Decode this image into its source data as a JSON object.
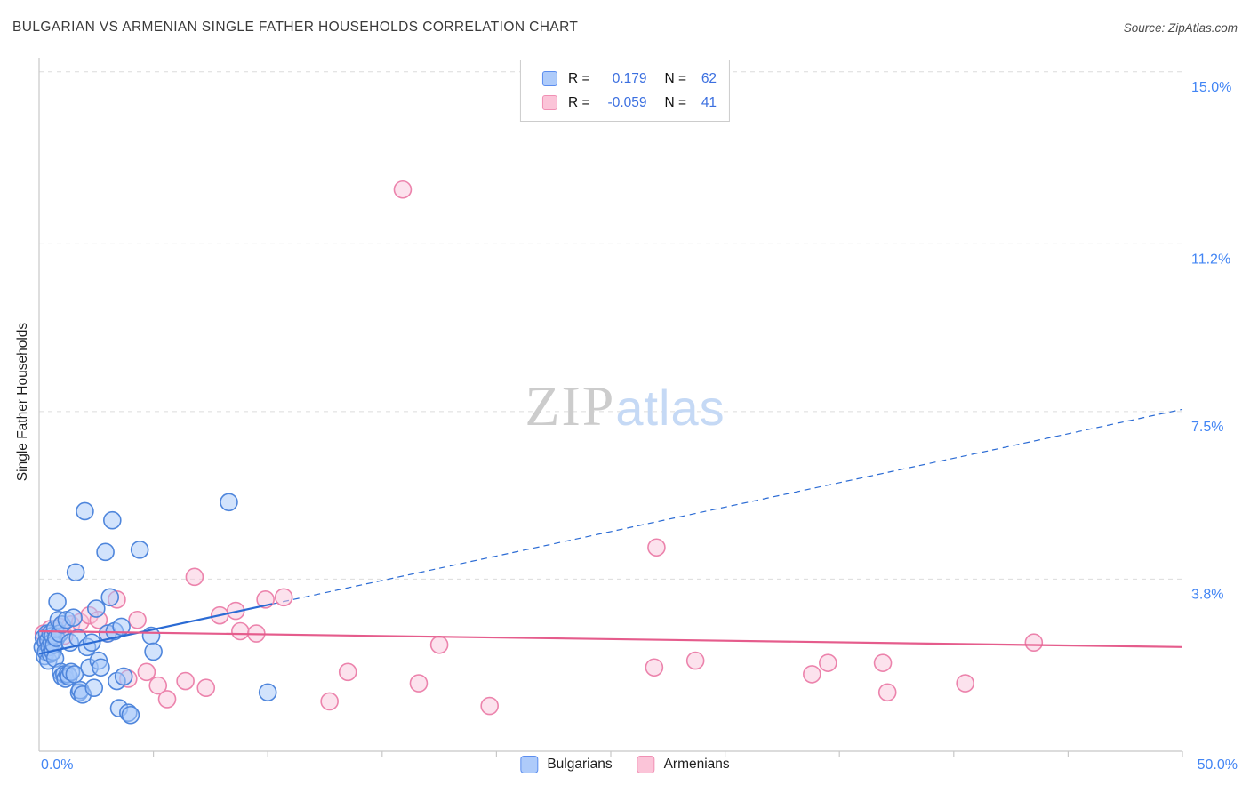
{
  "header": {
    "title": "BULGARIAN VS ARMENIAN SINGLE FATHER HOUSEHOLDS CORRELATION CHART",
    "source": "Source: ZipAtlas.com"
  },
  "watermark": {
    "zip": "ZIP",
    "atlas": "atlas"
  },
  "legend": {
    "rows": [
      {
        "series": "Bulgarians",
        "r_label": "R =",
        "r_value": "0.179",
        "n_label": "N =",
        "n_value": "62"
      },
      {
        "series": "Armenians",
        "r_label": "R =",
        "r_value": "-0.059",
        "n_label": "N =",
        "n_value": "41"
      }
    ]
  },
  "bottom_legend": {
    "items": [
      {
        "label": "Bulgarians"
      },
      {
        "label": "Armenians"
      }
    ]
  },
  "axes": {
    "x_min_label": "0.0%",
    "x_max_label": "50.0%",
    "y_axis_title": "Single Father Households"
  },
  "chart_data": {
    "type": "scatter",
    "title": "BULGARIAN VS ARMENIAN SINGLE FATHER HOUSEHOLDS CORRELATION CHART",
    "ylabel": "Single Father Households",
    "xlim": [
      0,
      50
    ],
    "ylim": [
      0,
      15.31
    ],
    "x_tick_step": 5,
    "grid": true,
    "y_ticks": [
      {
        "value": 15.0,
        "label": "15.0%"
      },
      {
        "value": 11.2,
        "label": "11.2%"
      },
      {
        "value": 7.5,
        "label": "7.5%"
      },
      {
        "value": 3.8,
        "label": "3.8%"
      }
    ],
    "colors": {
      "blue_fill": "#a6c8fa",
      "blue_stroke": "#4f86dc",
      "pink_fill": "#fac6dc",
      "pink_stroke": "#ec83ac",
      "blue_trend": "#2b6bd4",
      "pink_trend": "#e55c8c",
      "grid": "#dcdcdc",
      "axis": "#c8c8c8",
      "tick_label": "#4285f4"
    },
    "series": [
      {
        "name": "Bulgarians",
        "R": 0.179,
        "N": 62,
        "points": [
          [
            0.15,
            2.3
          ],
          [
            0.2,
            2.5
          ],
          [
            0.25,
            2.1
          ],
          [
            0.3,
            2.4
          ],
          [
            0.3,
            2.2
          ],
          [
            0.35,
            2.6
          ],
          [
            0.4,
            2.0
          ],
          [
            0.4,
            2.45
          ],
          [
            0.45,
            2.3
          ],
          [
            0.5,
            2.6
          ],
          [
            0.5,
            2.15
          ],
          [
            0.55,
            2.4
          ],
          [
            0.6,
            2.2
          ],
          [
            0.6,
            2.55
          ],
          [
            0.65,
            2.35
          ],
          [
            0.7,
            2.7
          ],
          [
            0.7,
            2.05
          ],
          [
            0.75,
            2.5
          ],
          [
            0.8,
            3.3
          ],
          [
            0.85,
            2.9
          ],
          [
            0.9,
            2.6
          ],
          [
            0.95,
            1.75
          ],
          [
            1.0,
            2.8
          ],
          [
            1.0,
            1.65
          ],
          [
            1.1,
            1.7
          ],
          [
            1.15,
            1.6
          ],
          [
            1.2,
            2.9
          ],
          [
            1.25,
            1.7
          ],
          [
            1.3,
            1.65
          ],
          [
            1.35,
            2.4
          ],
          [
            1.4,
            1.75
          ],
          [
            1.5,
            2.95
          ],
          [
            1.55,
            1.7
          ],
          [
            1.6,
            3.95
          ],
          [
            1.7,
            2.5
          ],
          [
            1.75,
            1.3
          ],
          [
            1.8,
            1.35
          ],
          [
            1.9,
            1.25
          ],
          [
            2.0,
            5.3
          ],
          [
            2.1,
            2.3
          ],
          [
            2.2,
            1.85
          ],
          [
            2.3,
            2.4
          ],
          [
            2.4,
            1.4
          ],
          [
            2.5,
            3.15
          ],
          [
            2.6,
            2.0
          ],
          [
            2.7,
            1.85
          ],
          [
            2.9,
            4.4
          ],
          [
            3.0,
            2.6
          ],
          [
            3.1,
            3.4
          ],
          [
            3.2,
            5.1
          ],
          [
            3.3,
            2.65
          ],
          [
            3.4,
            1.55
          ],
          [
            3.5,
            0.95
          ],
          [
            3.6,
            2.75
          ],
          [
            3.7,
            1.65
          ],
          [
            3.9,
            0.85
          ],
          [
            4.0,
            0.8
          ],
          [
            4.4,
            4.45
          ],
          [
            4.9,
            2.55
          ],
          [
            5.0,
            2.2
          ],
          [
            8.3,
            5.5
          ],
          [
            10.0,
            1.3
          ]
        ]
      },
      {
        "name": "Armenians",
        "R": -0.059,
        "N": 41,
        "points": [
          [
            0.2,
            2.6
          ],
          [
            0.35,
            2.45
          ],
          [
            0.5,
            2.7
          ],
          [
            0.7,
            2.5
          ],
          [
            0.9,
            2.75
          ],
          [
            1.1,
            2.55
          ],
          [
            1.4,
            2.8
          ],
          [
            1.8,
            2.85
          ],
          [
            2.2,
            3.0
          ],
          [
            2.6,
            2.9
          ],
          [
            3.0,
            2.6
          ],
          [
            3.4,
            3.35
          ],
          [
            3.9,
            1.6
          ],
          [
            4.3,
            2.9
          ],
          [
            4.7,
            1.75
          ],
          [
            5.2,
            1.45
          ],
          [
            5.6,
            1.15
          ],
          [
            6.4,
            1.55
          ],
          [
            6.8,
            3.85
          ],
          [
            7.3,
            1.4
          ],
          [
            7.9,
            3.0
          ],
          [
            8.6,
            3.1
          ],
          [
            8.8,
            2.65
          ],
          [
            9.5,
            2.6
          ],
          [
            9.9,
            3.35
          ],
          [
            10.7,
            3.4
          ],
          [
            12.7,
            1.1
          ],
          [
            13.5,
            1.75
          ],
          [
            15.9,
            12.4
          ],
          [
            16.6,
            1.5
          ],
          [
            17.5,
            2.35
          ],
          [
            19.7,
            1.0
          ],
          [
            26.9,
            1.85
          ],
          [
            27.0,
            4.5
          ],
          [
            28.7,
            2.0
          ],
          [
            33.8,
            1.7
          ],
          [
            34.5,
            1.95
          ],
          [
            36.9,
            1.95
          ],
          [
            37.1,
            1.3
          ],
          [
            40.5,
            1.5
          ],
          [
            43.5,
            2.4
          ]
        ]
      }
    ],
    "trend_lines": [
      {
        "series": "Bulgarians",
        "x1": 0,
        "y1": 2.15,
        "x2": 50,
        "y2": 7.55,
        "solid_until_x": 10.2,
        "style": "solid-then-dashed"
      },
      {
        "series": "Armenians",
        "x1": 0,
        "y1": 2.65,
        "x2": 50,
        "y2": 2.3,
        "style": "solid"
      }
    ]
  }
}
